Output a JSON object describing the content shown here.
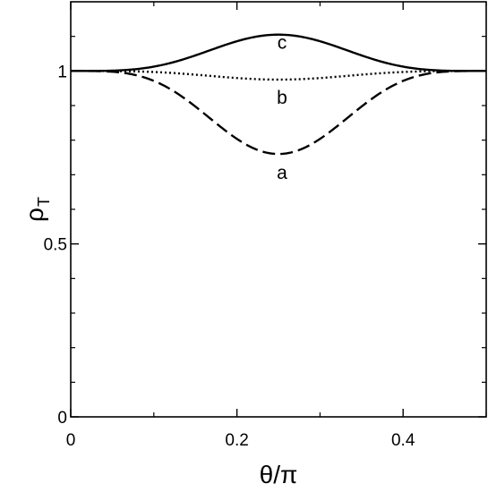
{
  "chart_data": {
    "type": "line",
    "title": "",
    "xlabel": "θ/π",
    "ylabel_main": "ρ",
    "ylabel_sub": "T",
    "xlim": [
      0,
      0.5
    ],
    "ylim": [
      0,
      1.2
    ],
    "x_ticks": [
      0,
      0.2,
      0.4
    ],
    "x_tick_labels": [
      "0",
      "0.2",
      "0.4"
    ],
    "x_minor_ticks": [
      0.1,
      0.3,
      0.5
    ],
    "y_ticks": [
      0,
      0.5,
      1
    ],
    "y_tick_labels": [
      "0",
      "0.5",
      "1"
    ],
    "y_minor_ticks": [
      0.1,
      0.2,
      0.3,
      0.4,
      0.6,
      0.7,
      0.8,
      0.9,
      1.1
    ],
    "grid": false,
    "legend": "none",
    "series": [
      {
        "label": "c",
        "style": "solid",
        "base": 1,
        "amplitude": 0.105,
        "x": [
          0,
          0.05,
          0.1,
          0.15,
          0.2,
          0.25,
          0.3,
          0.35,
          0.4,
          0.45,
          0.5
        ],
        "y": [
          1,
          1.002,
          1.02,
          1.055,
          1.09,
          1.105,
          1.09,
          1.055,
          1.02,
          1.002,
          1
        ]
      },
      {
        "label": "b",
        "style": "dotted",
        "base": 1,
        "amplitude": -0.025,
        "x": [
          0,
          0.05,
          0.1,
          0.15,
          0.2,
          0.25,
          0.3,
          0.35,
          0.4,
          0.45,
          0.5
        ],
        "y": [
          1,
          0.99,
          0.978,
          0.975,
          0.976,
          0.977,
          0.976,
          0.975,
          0.978,
          0.99,
          1
        ]
      },
      {
        "label": "a",
        "style": "dashed",
        "base": 1,
        "amplitude": -0.24,
        "x": [
          0,
          0.05,
          0.1,
          0.15,
          0.2,
          0.25,
          0.3,
          0.35,
          0.4,
          0.45,
          0.5
        ],
        "y": [
          1,
          0.985,
          0.93,
          0.85,
          0.785,
          0.76,
          0.785,
          0.85,
          0.93,
          0.985,
          1
        ]
      }
    ],
    "annotations": [
      {
        "text": "c",
        "x": 0.25,
        "y": 1.105
      },
      {
        "text": "b",
        "x": 0.25,
        "y": 0.977
      },
      {
        "text": "a",
        "x": 0.25,
        "y": 0.76
      }
    ]
  }
}
